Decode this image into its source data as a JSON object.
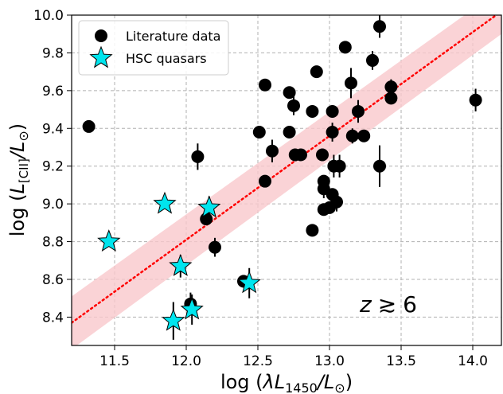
{
  "chart_data": {
    "type": "scatter",
    "xlabel_prefix": "log (",
    "xlabel_sym": "λL",
    "xlabel_sub": "1450",
    "xlabel_mid": "/L",
    "xlabel_sun": "⊙",
    "xlabel_suffix": ")",
    "ylabel_prefix": "log (",
    "ylabel_sym": "L",
    "ylabel_sub": "[CII]",
    "ylabel_mid": "/L",
    "ylabel_sun": "⊙",
    "ylabel_suffix": ")",
    "xlim": [
      11.2,
      14.2
    ],
    "ylim": [
      8.25,
      10.0
    ],
    "xticks": [
      "11.5",
      "12.0",
      "12.5",
      "13.0",
      "13.5",
      "14.0"
    ],
    "xtick_values": [
      11.5,
      12.0,
      12.5,
      13.0,
      13.5,
      14.0
    ],
    "yticks": [
      "8.4",
      "8.6",
      "8.8",
      "9.0",
      "9.2",
      "9.4",
      "9.6",
      "9.8",
      "10.0"
    ],
    "ytick_values": [
      8.4,
      8.6,
      8.8,
      9.0,
      9.2,
      9.4,
      9.6,
      9.8,
      10.0
    ],
    "grid": true,
    "legend_position": "top-left",
    "annotation": {
      "var": "z",
      "rel": "≳",
      "val": "6"
    },
    "colors": {
      "literature": "#000000",
      "hsc": "#00e5ee",
      "fit": "#ff0000",
      "band": "#f9c8cc",
      "grid": "#b0b0b0"
    },
    "fit": {
      "x": [
        11.2,
        14.2
      ],
      "y": [
        8.37,
        10.02
      ],
      "band_halfwidth_y": [
        0.14,
        0.12
      ],
      "style": "dotted"
    },
    "series": [
      {
        "name": "Literature data",
        "marker": "circle",
        "points": [
          {
            "x": 11.32,
            "y": 9.41
          },
          {
            "x": 12.08,
            "y": 9.25,
            "yerr": 0.07
          },
          {
            "x": 12.14,
            "y": 8.92
          },
          {
            "x": 12.2,
            "y": 8.77,
            "yerr": 0.05
          },
          {
            "x": 12.03,
            "y": 8.47,
            "yerr": 0.06
          },
          {
            "x": 12.4,
            "y": 8.59
          },
          {
            "x": 12.51,
            "y": 9.38
          },
          {
            "x": 12.55,
            "y": 9.63
          },
          {
            "x": 12.55,
            "y": 9.12
          },
          {
            "x": 12.6,
            "y": 9.28,
            "yerr": 0.06
          },
          {
            "x": 12.72,
            "y": 9.59
          },
          {
            "x": 12.72,
            "y": 9.38
          },
          {
            "x": 12.75,
            "y": 9.52,
            "yerr": 0.05
          },
          {
            "x": 12.76,
            "y": 9.26
          },
          {
            "x": 12.8,
            "y": 9.26
          },
          {
            "x": 12.88,
            "y": 9.49
          },
          {
            "x": 12.88,
            "y": 8.86
          },
          {
            "x": 12.91,
            "y": 9.7
          },
          {
            "x": 12.95,
            "y": 9.26
          },
          {
            "x": 12.96,
            "y": 9.12
          },
          {
            "x": 12.96,
            "y": 9.08,
            "yerr": 0.05
          },
          {
            "x": 12.96,
            "y": 8.97
          },
          {
            "x": 13.0,
            "y": 8.98
          },
          {
            "x": 13.02,
            "y": 9.05
          },
          {
            "x": 13.02,
            "y": 9.49
          },
          {
            "x": 13.02,
            "y": 9.38,
            "yerr": 0.05
          },
          {
            "x": 13.03,
            "y": 9.2,
            "yerr": 0.06
          },
          {
            "x": 13.05,
            "y": 9.01,
            "yerr": 0.05
          },
          {
            "x": 13.07,
            "y": 9.2,
            "yerr": 0.06
          },
          {
            "x": 13.11,
            "y": 9.83
          },
          {
            "x": 13.15,
            "y": 9.64,
            "yerr": 0.08
          },
          {
            "x": 13.16,
            "y": 9.36,
            "yerr": 0.04
          },
          {
            "x": 13.2,
            "y": 9.49,
            "yerr": 0.06
          },
          {
            "x": 13.24,
            "y": 9.36
          },
          {
            "x": 13.3,
            "y": 9.76,
            "yerr": 0.05
          },
          {
            "x": 13.35,
            "y": 9.94,
            "yerr": 0.06
          },
          {
            "x": 13.35,
            "y": 9.2,
            "yerr": 0.11
          },
          {
            "x": 13.43,
            "y": 9.62,
            "yerr": 0.04
          },
          {
            "x": 13.43,
            "y": 9.56
          },
          {
            "x": 14.02,
            "y": 9.55,
            "yerr": 0.06
          }
        ]
      },
      {
        "name": "HSC quasars",
        "marker": "star",
        "points": [
          {
            "x": 11.46,
            "y": 8.8
          },
          {
            "x": 11.85,
            "y": 9.0
          },
          {
            "x": 11.91,
            "y": 8.38,
            "yerr": 0.1
          },
          {
            "x": 11.96,
            "y": 8.67,
            "yerr": 0.06
          },
          {
            "x": 12.04,
            "y": 8.44,
            "yerr": 0.08
          },
          {
            "x": 12.16,
            "y": 8.98,
            "yerr": 0.06
          },
          {
            "x": 12.44,
            "y": 8.58,
            "yerr": 0.08
          }
        ]
      }
    ]
  }
}
